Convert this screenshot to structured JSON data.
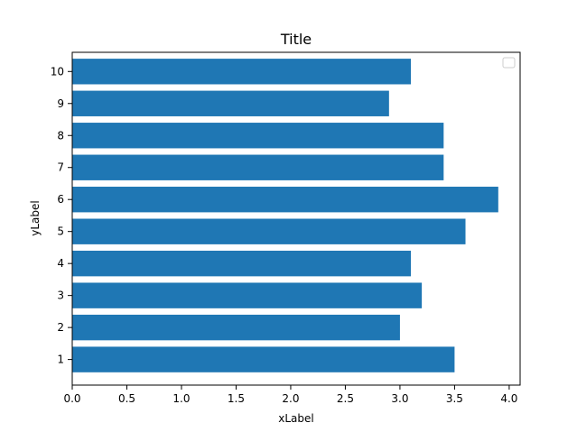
{
  "chart_data": {
    "type": "bar",
    "orientation": "horizontal",
    "title": "Title",
    "xlabel": "xLabel",
    "ylabel": "yLabel",
    "categories": [
      "1",
      "2",
      "3",
      "4",
      "5",
      "6",
      "7",
      "8",
      "9",
      "10"
    ],
    "values": [
      3.5,
      3.0,
      3.2,
      3.1,
      3.6,
      3.9,
      3.4,
      3.4,
      2.9,
      3.1
    ],
    "xlim": [
      0,
      4.1
    ],
    "xticks": [
      "0.0",
      "0.5",
      "1.0",
      "1.5",
      "2.0",
      "2.5",
      "3.0",
      "3.5",
      "4.0"
    ],
    "bar_color": "#1f77b4",
    "grid": false,
    "legend": {
      "placement": "top-right",
      "entries": []
    }
  }
}
